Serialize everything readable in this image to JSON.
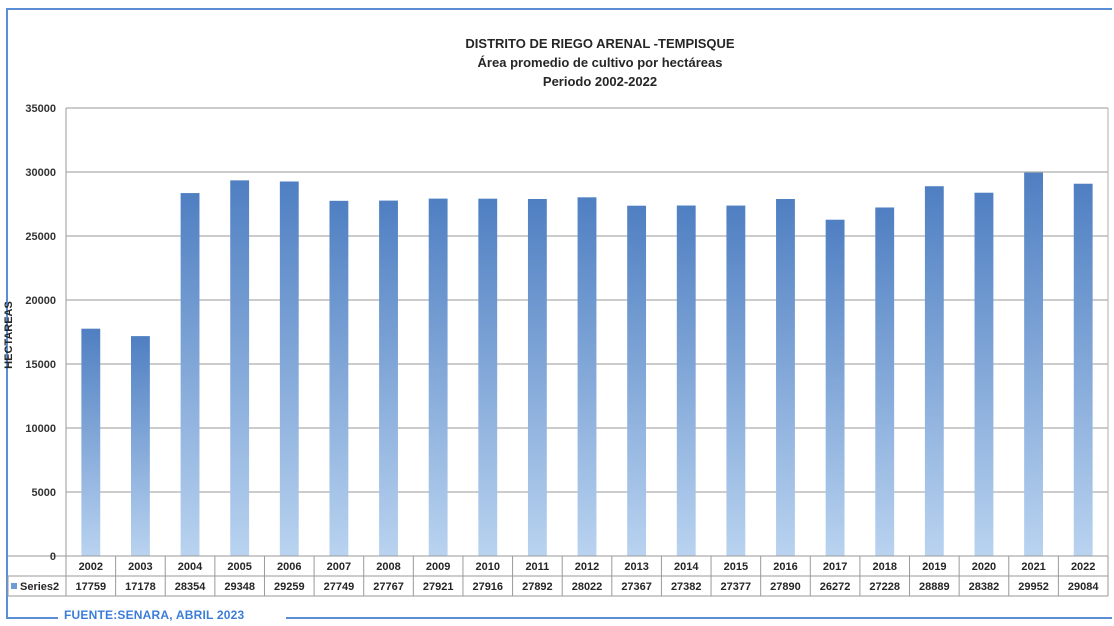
{
  "title": "DISTRITO DE RIEGO  ARENAL -TEMPISQUE",
  "subtitle": "Área promedio de cultivo por hectáreas",
  "period": "Periodo 2002-2022",
  "source_note": "FUENTE:SENARA, ABRIL 2023",
  "colors": {
    "frame": "#5b8ed6",
    "bar_top": "#4f7fc2",
    "bar_bottom": "#b9d3f0",
    "grid": "#9a9a9a"
  },
  "chart_data": {
    "type": "bar",
    "title": "DISTRITO DE RIEGO  ARENAL -TEMPISQUE",
    "subtitle": "Área promedio de cultivo por hectáreas",
    "ylabel": "HECTAREAS",
    "xlabel": "",
    "ylim": [
      0,
      35000
    ],
    "yticks": [
      0,
      5000,
      10000,
      15000,
      20000,
      25000,
      30000,
      35000
    ],
    "grid": true,
    "legend": "data-table",
    "categories": [
      "2002",
      "2003",
      "2004",
      "2005",
      "2006",
      "2007",
      "2008",
      "2009",
      "2010",
      "2011",
      "2012",
      "2013",
      "2014",
      "2015",
      "2016",
      "2017",
      "2018",
      "2019",
      "2020",
      "2021",
      "2022"
    ],
    "series": [
      {
        "name": "Series2",
        "values": [
          17759,
          17178,
          28354,
          29348,
          29259,
          27749,
          27767,
          27921,
          27916,
          27892,
          28022,
          27367,
          27382,
          27377,
          27890,
          26272,
          27228,
          28889,
          28382,
          29952,
          29084
        ]
      }
    ]
  }
}
